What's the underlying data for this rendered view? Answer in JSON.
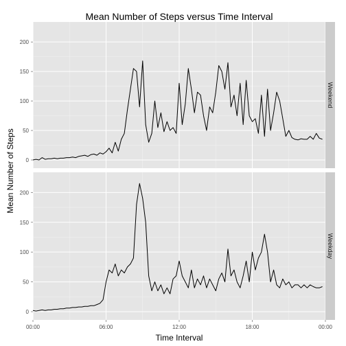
{
  "chart_data": {
    "type": "line",
    "title": "Mean Number of Steps versus Time Interval",
    "xlabel": "Time Interval",
    "ylabel": "Mean Number of Steps",
    "x_unit": "hours since midnight",
    "xlim": [
      0,
      24
    ],
    "ylim": [
      0,
      220
    ],
    "x_ticks": [
      0,
      6,
      12,
      18,
      24
    ],
    "x_tick_labels": [
      "00:00",
      "06:00",
      "12:00",
      "18:00",
      "00:00"
    ],
    "y_ticks": [
      0,
      50,
      100,
      150,
      200
    ],
    "grid": true,
    "theme": "ggplot2 grey",
    "panel_color": "#e5e5e5",
    "strip_color": "#cccccc",
    "line_color": "#000000",
    "facets": [
      {
        "strip_label": "Weekend",
        "x": [
          0,
          0.25,
          0.5,
          0.75,
          1,
          1.25,
          1.5,
          1.75,
          2,
          2.25,
          2.5,
          2.75,
          3,
          3.25,
          3.5,
          3.75,
          4,
          4.25,
          4.5,
          4.75,
          5,
          5.25,
          5.5,
          5.75,
          6,
          6.25,
          6.5,
          6.75,
          7,
          7.25,
          7.5,
          7.75,
          8,
          8.25,
          8.5,
          8.75,
          9,
          9.25,
          9.5,
          9.75,
          10,
          10.25,
          10.5,
          10.75,
          11,
          11.25,
          11.5,
          11.75,
          12,
          12.25,
          12.5,
          12.75,
          13,
          13.25,
          13.5,
          13.75,
          14,
          14.25,
          14.5,
          14.75,
          15,
          15.25,
          15.5,
          15.75,
          16,
          16.25,
          16.5,
          16.75,
          17,
          17.25,
          17.5,
          17.75,
          18,
          18.25,
          18.5,
          18.75,
          19,
          19.25,
          19.5,
          19.75,
          20,
          20.25,
          20.5,
          20.75,
          21,
          21.25,
          21.5,
          21.75,
          22,
          22.25,
          22.5,
          22.75,
          23,
          23.25,
          23.5,
          23.75
        ],
        "y": [
          0,
          1,
          0,
          4,
          1,
          2,
          2,
          3,
          2,
          3,
          3,
          4,
          4,
          5,
          4,
          6,
          7,
          8,
          6,
          9,
          10,
          8,
          12,
          10,
          14,
          20,
          12,
          30,
          15,
          35,
          45,
          85,
          120,
          155,
          150,
          90,
          168,
          60,
          30,
          45,
          100,
          55,
          80,
          48,
          65,
          50,
          55,
          45,
          130,
          60,
          95,
          155,
          120,
          80,
          115,
          110,
          75,
          50,
          90,
          80,
          115,
          160,
          150,
          120,
          165,
          90,
          110,
          75,
          130,
          60,
          135,
          75,
          65,
          70,
          45,
          110,
          40,
          120,
          50,
          80,
          115,
          100,
          70,
          40,
          50,
          38,
          35,
          34,
          36,
          35,
          35,
          40,
          35,
          45,
          37,
          35
        ]
      },
      {
        "strip_label": "Weekday",
        "x": [
          0,
          0.25,
          0.5,
          0.75,
          1,
          1.25,
          1.5,
          1.75,
          2,
          2.25,
          2.5,
          2.75,
          3,
          3.25,
          3.5,
          3.75,
          4,
          4.25,
          4.5,
          4.75,
          5,
          5.25,
          5.5,
          5.75,
          6,
          6.25,
          6.5,
          6.75,
          7,
          7.25,
          7.5,
          7.75,
          8,
          8.25,
          8.5,
          8.75,
          9,
          9.25,
          9.5,
          9.75,
          10,
          10.25,
          10.5,
          10.75,
          11,
          11.25,
          11.5,
          11.75,
          12,
          12.25,
          12.5,
          12.75,
          13,
          13.25,
          13.5,
          13.75,
          14,
          14.25,
          14.5,
          14.75,
          15,
          15.25,
          15.5,
          15.75,
          16,
          16.25,
          16.5,
          16.75,
          17,
          17.25,
          17.5,
          17.75,
          18,
          18.25,
          18.5,
          18.75,
          19,
          19.25,
          19.5,
          19.75,
          20,
          20.25,
          20.5,
          20.75,
          21,
          21.25,
          21.5,
          21.75,
          22,
          22.25,
          22.5,
          22.75,
          23,
          23.25,
          23.5,
          23.75
        ],
        "y": [
          2,
          1,
          2,
          3,
          2,
          3,
          3,
          4,
          4,
          5,
          5,
          6,
          6,
          7,
          7,
          8,
          8,
          9,
          9,
          10,
          10,
          12,
          14,
          20,
          50,
          70,
          65,
          80,
          60,
          70,
          65,
          75,
          80,
          90,
          180,
          215,
          190,
          150,
          60,
          35,
          50,
          35,
          45,
          30,
          40,
          30,
          55,
          60,
          85,
          60,
          50,
          40,
          70,
          40,
          55,
          45,
          60,
          40,
          55,
          45,
          35,
          55,
          65,
          50,
          105,
          60,
          70,
          50,
          40,
          60,
          85,
          50,
          100,
          70,
          90,
          100,
          130,
          100,
          50,
          70,
          45,
          40,
          55,
          45,
          50,
          40,
          45,
          45,
          40,
          45,
          40,
          45,
          42,
          40,
          40,
          42
        ]
      }
    ]
  }
}
